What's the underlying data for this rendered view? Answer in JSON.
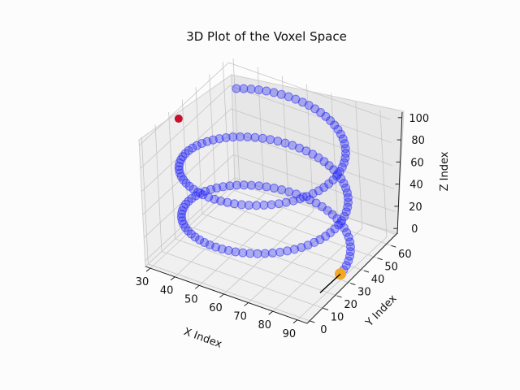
{
  "chart_data": {
    "type": "scatter",
    "projection": "3d",
    "title": "3D Plot of the Voxel Space",
    "xlabel": "X Index",
    "ylabel": "Y Index",
    "zlabel": "Z Index",
    "xlim": [
      28,
      94
    ],
    "ylim": [
      -2,
      64
    ],
    "zlim": [
      -5,
      105
    ],
    "x_ticks": [
      "30",
      "40",
      "50",
      "60",
      "70",
      "80",
      "90"
    ],
    "y_ticks": [
      "0",
      "10",
      "20",
      "30",
      "40",
      "50",
      "60"
    ],
    "z_ticks": [
      "0",
      "20",
      "40",
      "60",
      "80",
      "100"
    ],
    "grid": true,
    "colors": {
      "path": "#2a2af5",
      "start": "#f5a623",
      "end": "#c8102e",
      "arrow": "#000000"
    },
    "series": [
      {
        "marker": "o",
        "values_formula": "x = 60 + 30*cos(0.15*z), y = 30 + 30*sin(0.15*z), z = 0..100",
        "points": [
          [
            90.0,
            30.0,
            0
          ],
          [
            88.7,
            38.9,
            3
          ],
          [
            84.9,
            46.9,
            6
          ],
          [
            78.8,
            53.5,
            9
          ],
          [
            70.9,
            58.0,
            12
          ],
          [
            62.0,
            59.9,
            15
          ],
          [
            52.9,
            59.1,
            18
          ],
          [
            44.6,
            55.7,
            21
          ],
          [
            38.0,
            50.1,
            24
          ],
          [
            33.6,
            42.7,
            27
          ],
          [
            31.1,
            34.0,
            30
          ],
          [
            30.4,
            25.1,
            33
          ],
          [
            32.4,
            16.3,
            36
          ],
          [
            36.6,
            8.9,
            39
          ],
          [
            42.9,
            3.2,
            42
          ],
          [
            50.5,
            0.2,
            45
          ],
          [
            59.1,
            0.0,
            48
          ],
          [
            67.6,
            1.0,
            51
          ],
          [
            75.3,
            4.1,
            54
          ],
          [
            81.7,
            9.2,
            57
          ],
          [
            86.4,
            15.7,
            60
          ],
          [
            89.1,
            23.0,
            63
          ],
          [
            89.9,
            31.8,
            66
          ],
          [
            87.5,
            42.0,
            69
          ],
          [
            82.6,
            49.8,
            72
          ],
          [
            75.8,
            55.5,
            75
          ],
          [
            67.3,
            59.1,
            78
          ],
          [
            58.1,
            60.0,
            81
          ],
          [
            49.3,
            58.0,
            84
          ],
          [
            41.3,
            53.4,
            87
          ],
          [
            35.4,
            47.2,
            90
          ],
          [
            31.6,
            39.9,
            93
          ],
          [
            30.1,
            30.9,
            96
          ],
          [
            30.9,
            22.6,
            99
          ],
          [
            31.1,
            21.5,
            100
          ]
        ],
        "start_point": [
          90,
          30,
          0
        ],
        "end_point": [
          31.1,
          21.5,
          100
        ],
        "direction_arrow": [
          [
            90,
            30,
            0
          ],
          [
            90,
            15,
            0
          ]
        ]
      }
    ]
  }
}
